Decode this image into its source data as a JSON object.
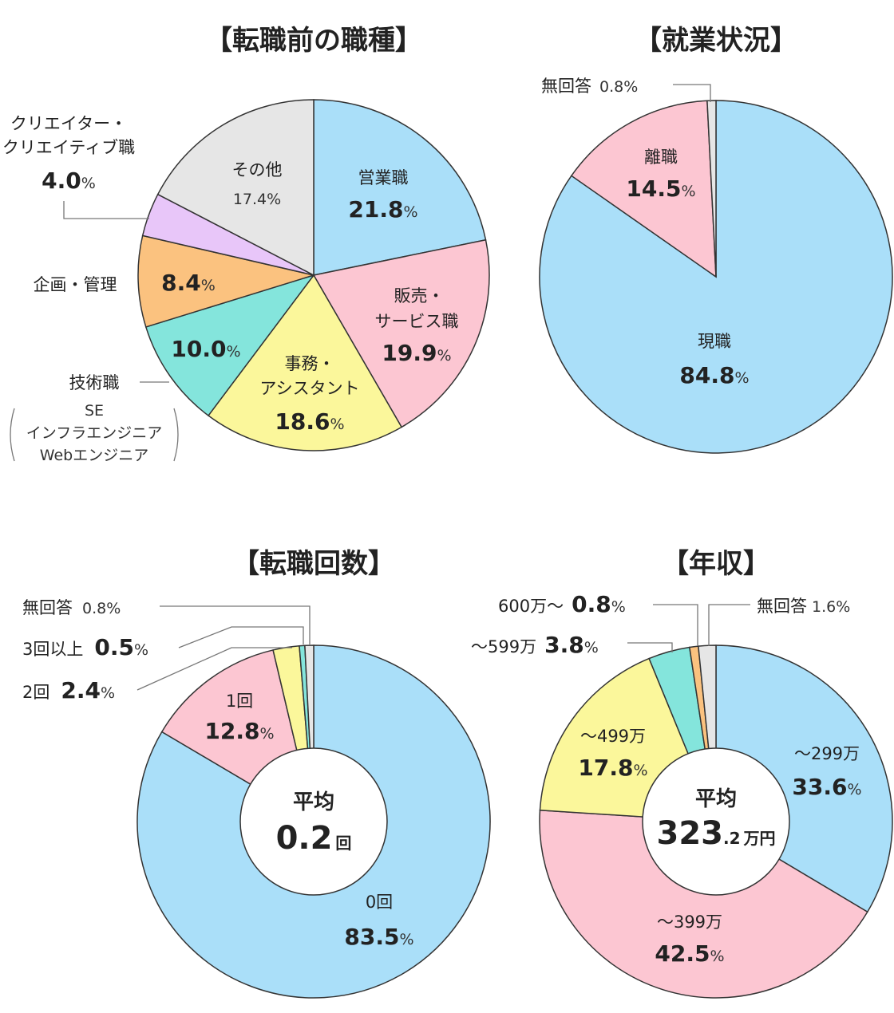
{
  "colors": {
    "blue": "#aadff9",
    "pink": "#fcc6d2",
    "yellow": "#fbf79b",
    "teal": "#84e5dc",
    "orange": "#fbc27f",
    "purple": "#e8c6f9",
    "gray": "#e6e6e6"
  },
  "chart_data": [
    {
      "type": "pie",
      "title": "【転職前の職種】",
      "slices": [
        {
          "label": "営業職",
          "value": 21.8,
          "color": "blue",
          "display": "21.8"
        },
        {
          "label": "販売・サービス職",
          "value": 19.9,
          "color": "pink",
          "display": "19.9"
        },
        {
          "label": "事務・アシスタント",
          "value": 18.6,
          "color": "yellow",
          "display": "18.6"
        },
        {
          "label": "技術職",
          "sub": [
            "SE",
            "インフラエンジニア",
            "Webエンジニア"
          ],
          "value": 10.0,
          "color": "teal",
          "display": "10.0"
        },
        {
          "label": "企画・管理",
          "value": 8.4,
          "color": "orange",
          "display": "8.4"
        },
        {
          "label": "クリエイター・クリエイティブ職",
          "value": 4.0,
          "color": "purple",
          "display": "4.0"
        },
        {
          "label": "その他",
          "value": 17.4,
          "color": "gray",
          "display": "17.4"
        }
      ]
    },
    {
      "type": "pie",
      "title": "【就業状況】",
      "slices": [
        {
          "label": "現職",
          "value": 84.8,
          "color": "blue",
          "display": "84.8"
        },
        {
          "label": "離職",
          "value": 14.5,
          "color": "pink",
          "display": "14.5"
        },
        {
          "label": "無回答",
          "value": 0.8,
          "color": "gray",
          "display": "0.8"
        }
      ]
    },
    {
      "type": "pie",
      "title": "【転職回数】",
      "center": {
        "label": "平均",
        "value": "0.2",
        "unit": "回"
      },
      "slices": [
        {
          "label": "0回",
          "value": 83.5,
          "color": "blue",
          "display": "83.5"
        },
        {
          "label": "1回",
          "value": 12.8,
          "color": "pink",
          "display": "12.8"
        },
        {
          "label": "2回",
          "value": 2.4,
          "color": "yellow",
          "display": "2.4"
        },
        {
          "label": "3回以上",
          "value": 0.5,
          "color": "teal",
          "display": "0.5"
        },
        {
          "label": "無回答",
          "value": 0.8,
          "color": "gray",
          "display": "0.8"
        }
      ]
    },
    {
      "type": "pie",
      "title": "【年収】",
      "center": {
        "label": "平均",
        "value": "323",
        "value_small": ".2",
        "unit": "万円"
      },
      "slices": [
        {
          "label": "～299万",
          "value": 33.6,
          "color": "blue",
          "display": "33.6"
        },
        {
          "label": "～399万",
          "value": 42.5,
          "color": "pink",
          "display": "42.5"
        },
        {
          "label": "～499万",
          "value": 17.8,
          "color": "yellow",
          "display": "17.8"
        },
        {
          "label": "～599万",
          "value": 3.8,
          "color": "teal",
          "display": "3.8"
        },
        {
          "label": "600万～",
          "value": 0.8,
          "color": "orange",
          "display": "0.8"
        },
        {
          "label": "無回答",
          "value": 1.6,
          "color": "gray",
          "display": "1.6"
        }
      ]
    }
  ]
}
